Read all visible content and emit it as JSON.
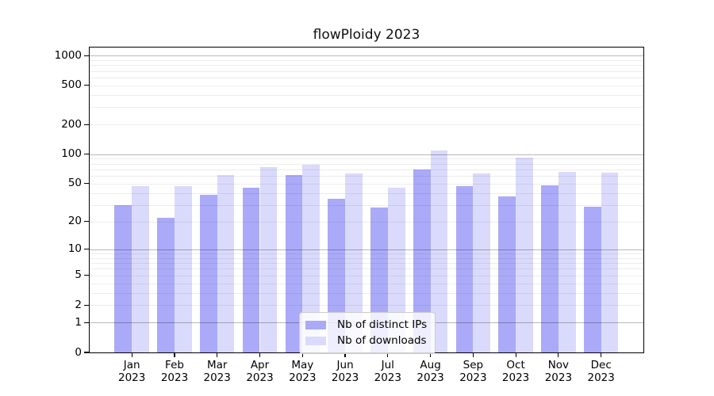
{
  "title": "flowPloidy 2023",
  "chart_data": {
    "type": "bar",
    "title": "flowPloidy 2023",
    "categories": [
      "Jan",
      "Feb",
      "Mar",
      "Apr",
      "May",
      "Jun",
      "Jul",
      "Aug",
      "Sep",
      "Oct",
      "Nov",
      "Dec"
    ],
    "x_tick_line2": "2023",
    "series": [
      {
        "name": "Nb of distinct IPs",
        "color": "#aaaaf8",
        "values": [
          30,
          22,
          38,
          45,
          61,
          35,
          28,
          70,
          47,
          37,
          48,
          29
        ]
      },
      {
        "name": "Nb of downloads",
        "color": "#dadafc",
        "values": [
          47,
          47,
          61,
          74,
          78,
          64,
          45,
          110,
          64,
          92,
          66,
          65
        ]
      }
    ],
    "yaxis": {
      "scale": "log1p",
      "tick_values": [
        0,
        1,
        2,
        5,
        10,
        20,
        50,
        100,
        200,
        500,
        1000
      ],
      "tick_labels": [
        "0",
        "1",
        "2",
        "5",
        "10",
        "20",
        "50",
        "100",
        "200",
        "500",
        "1000"
      ],
      "ymax": 1208,
      "major_gridlines": [
        1,
        10,
        100,
        1000
      ],
      "minor_gridlines": [
        2,
        3,
        4,
        5,
        6,
        7,
        8,
        9,
        20,
        30,
        40,
        50,
        60,
        70,
        80,
        90,
        200,
        300,
        400,
        500,
        600,
        700,
        800,
        900
      ]
    },
    "legend": {
      "position": "bottom-center",
      "entries": [
        "Nb of distinct IPs",
        "Nb of downloads"
      ]
    },
    "grid": true
  }
}
